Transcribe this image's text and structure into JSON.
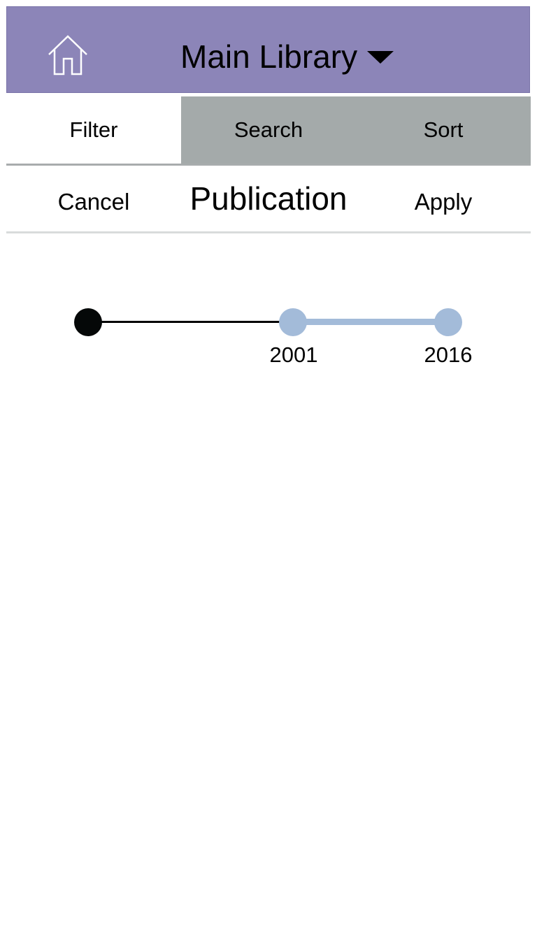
{
  "header": {
    "home_icon": "home-icon",
    "title": "Main Library",
    "dropdown_icon": "caret-down-icon",
    "background_color": "#8c85b8"
  },
  "tabs": [
    {
      "label": "Filter",
      "active": true
    },
    {
      "label": "Search",
      "active": false
    },
    {
      "label": "Sort",
      "active": false
    }
  ],
  "filter_bar": {
    "cancel_label": "Cancel",
    "title": "Publication",
    "apply_label": "Apply"
  },
  "year_range": {
    "selected_low": "2001",
    "selected_high": "2016",
    "selected_color": "#a3bbd9"
  }
}
